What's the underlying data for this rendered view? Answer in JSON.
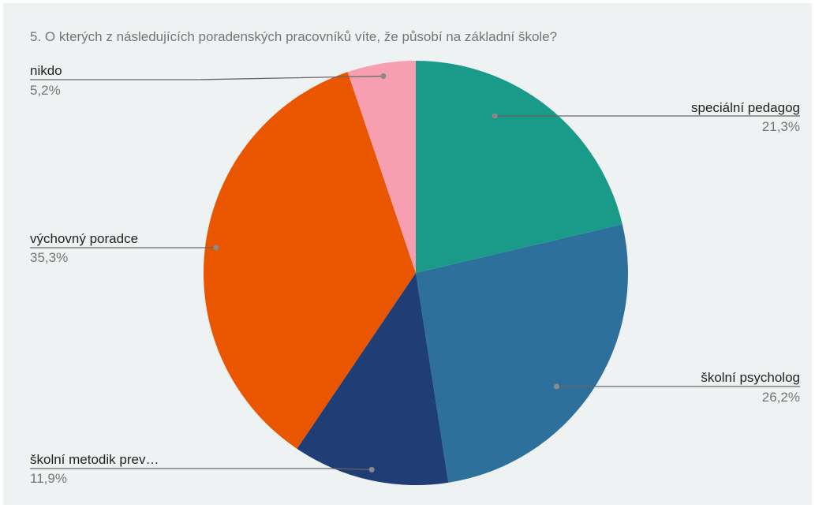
{
  "chart_data": {
    "type": "pie",
    "title": "5. O kterých z následujících poradenských pracovníků víte, že působí na základní škole?",
    "slices": [
      {
        "label": "speciální pedagog",
        "display_label": "speciální pedagog",
        "value": 21.3,
        "value_label": "21,3%",
        "color": "#1a9a88"
      },
      {
        "label": "školní psycholog",
        "display_label": "školní psycholog",
        "value": 26.2,
        "value_label": "26,2%",
        "color": "#2e709c"
      },
      {
        "label": "školní metodik prevence",
        "display_label": "školní metodik prev…",
        "value": 11.9,
        "value_label": "11,9%",
        "color": "#203e76"
      },
      {
        "label": "výchovný poradce",
        "display_label": "výchovný poradce",
        "value": 35.3,
        "value_label": "35,3%",
        "color": "#ea5600"
      },
      {
        "label": "nikdo",
        "display_label": "nikdo",
        "value": 5.2,
        "value_label": "5,2%",
        "color": "#f79fb0"
      }
    ],
    "start_angle": "12 o'clock",
    "direction": "clockwise",
    "legend": "none (callout labels)"
  }
}
